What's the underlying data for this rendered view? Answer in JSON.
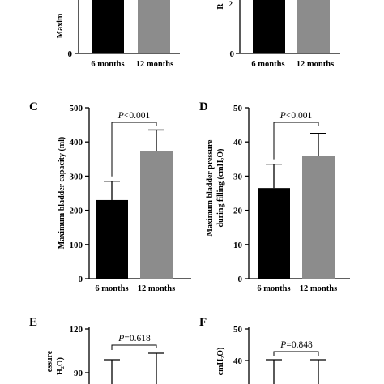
{
  "figure": {
    "background": "#ffffff",
    "bar_colors": {
      "6 months": "#000000",
      "12 months": "#8c8c8c"
    }
  },
  "chart_data": [
    {
      "panel": "A",
      "type": "bar",
      "categories": [
        "6 months",
        "12 months"
      ],
      "values": [
        null,
        null
      ],
      "ylabel": "Maxim",
      "letter": ""
    },
    {
      "panel": "B",
      "type": "bar",
      "categories": [
        "6 months",
        "12 months"
      ],
      "values": [
        null,
        null
      ],
      "ylabel": "R",
      "letter": ""
    },
    {
      "panel": "C",
      "type": "bar",
      "letter": "C",
      "categories": [
        "6 months",
        "12 months"
      ],
      "values": [
        230,
        373
      ],
      "errors": [
        55,
        62
      ],
      "ylabel": "Maximum bladder capacity (ml)",
      "ylim": [
        0,
        500
      ],
      "yticks": [
        "0",
        "100",
        "200",
        "300",
        "400",
        "500"
      ],
      "annotation": {
        "italic": "P",
        "rest": "<0.001"
      }
    },
    {
      "panel": "D",
      "type": "bar",
      "letter": "D",
      "categories": [
        "6 months",
        "12 months"
      ],
      "values": [
        26.5,
        36
      ],
      "errors": [
        7,
        6.5
      ],
      "ylabel_line1": "Maximum bladder pressure",
      "ylabel_line2": "during filling  (cmH₂O)",
      "ylim": [
        0,
        50
      ],
      "yticks": [
        "0",
        "10",
        "20",
        "30",
        "40",
        "50"
      ],
      "annotation": {
        "italic": "P",
        "rest": "<0.001"
      }
    },
    {
      "panel": "E",
      "type": "bar",
      "letter": "E",
      "categories": [
        "6 months",
        "12 months"
      ],
      "values": [
        null,
        null
      ],
      "error_tops": [
        98,
        103
      ],
      "ylabel_fragment1": "essure",
      "ylabel_fragment2": "H₂O)",
      "ylim_visible": [
        90,
        120
      ],
      "yticks": [
        "90",
        "120"
      ],
      "annotation": {
        "italic": "P",
        "rest": "=0.618"
      }
    },
    {
      "panel": "F",
      "type": "bar",
      "letter": "F",
      "categories": [
        "6 months",
        "12 months"
      ],
      "values": [
        null,
        null
      ],
      "error_tops": [
        40.5,
        40.5
      ],
      "ylabel_fragment1": "cmH₂O)",
      "ylim_visible": [
        40,
        50
      ],
      "yticks": [
        "40",
        "50"
      ],
      "annotation": {
        "italic": "P",
        "rest": "=0.848"
      }
    }
  ]
}
